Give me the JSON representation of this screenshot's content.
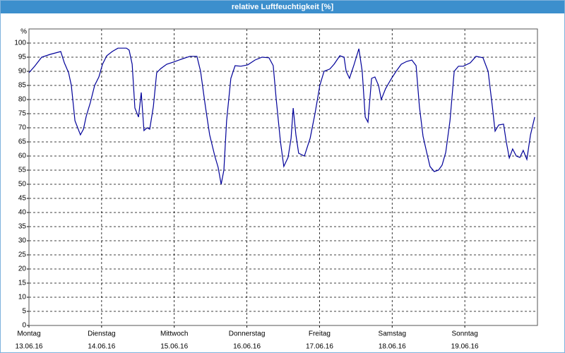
{
  "chart_data": {
    "type": "line",
    "title": "relative Luftfeuchtigkeit [%]",
    "ylabel": "%",
    "xlim": [
      0,
      168
    ],
    "xticks": [
      {
        "value": 0,
        "label": "Montag"
      },
      {
        "value": 24,
        "label": "Dienstag"
      },
      {
        "value": 48,
        "label": "Mittwoch"
      },
      {
        "value": 72,
        "label": "Donnerstag"
      },
      {
        "value": 96,
        "label": "Freitag"
      },
      {
        "value": 120,
        "label": "Samstag"
      },
      {
        "value": 144,
        "label": "Sonntag"
      }
    ],
    "xtick_dates": [
      "13.06.16",
      "14.06.16",
      "15.06.16",
      "16.06.16",
      "17.06.16",
      "18.06.16",
      "19.06.16"
    ],
    "ylim": [
      0,
      105
    ],
    "yticks": [
      0,
      5,
      10,
      15,
      20,
      25,
      30,
      35,
      40,
      45,
      50,
      55,
      60,
      65,
      70,
      75,
      80,
      85,
      90,
      95,
      100
    ],
    "grid": true,
    "x": [
      0,
      1.9,
      4.2,
      7.0,
      10.5,
      11.7,
      13.1,
      14.0,
      15.2,
      17.0,
      18.0,
      18.9,
      20.3,
      21.7,
      23.1,
      24.3,
      25.7,
      27.5,
      29.4,
      32.2,
      33.1,
      34.1,
      35.0,
      36.2,
      37.1,
      38.0,
      39.0,
      39.9,
      41.1,
      42.2,
      43.6,
      45.5,
      47.8,
      50.9,
      53.2,
      55.5,
      56.7,
      58.3,
      59.7,
      61.4,
      62.5,
      63.5,
      64.4,
      65.3,
      66.7,
      68.1,
      70.0,
      72.3,
      74.7,
      77.0,
      79.3,
      80.7,
      81.7,
      83.1,
      84.2,
      85.6,
      86.6,
      87.3,
      88.2,
      89.1,
      91.0,
      92.9,
      94.5,
      96.1,
      97.5,
      99.4,
      100.8,
      102.7,
      104.1,
      104.8,
      105.9,
      107.3,
      109.0,
      110.1,
      111.1,
      112.0,
      113.2,
      114.3,
      115.5,
      116.4,
      117.8,
      119.5,
      121.3,
      123.0,
      124.8,
      126.5,
      127.9,
      129.0,
      130.2,
      131.4,
      132.5,
      133.9,
      135.3,
      136.5,
      137.7,
      139.1,
      140.5,
      141.9,
      143.5,
      145.8,
      147.7,
      150.0,
      151.7,
      153.1,
      154.0,
      155.2,
      156.8,
      157.7,
      158.7,
      159.8,
      161.0,
      162.2,
      163.3,
      164.5,
      165.7,
      167.1
    ],
    "series": [
      {
        "color": "#000099",
        "values": [
          89.5,
          91.8,
          95,
          96,
          97,
          93,
          89.5,
          85,
          72.5,
          67.5,
          69.5,
          74,
          79,
          85,
          88,
          92.5,
          95.5,
          97,
          98.2,
          98.2,
          97.5,
          92.5,
          77,
          73.8,
          82.5,
          69,
          70,
          69.5,
          77.5,
          89.5,
          91,
          92.5,
          93.3,
          94.5,
          95.3,
          95.3,
          90,
          77.5,
          67.5,
          60,
          56,
          50,
          55,
          72.5,
          87.5,
          92,
          91.8,
          92.3,
          94,
          95,
          94.8,
          92,
          80,
          65,
          56.3,
          59.5,
          66.3,
          77,
          67.5,
          61,
          60,
          66.3,
          75,
          85,
          90,
          90.8,
          92.5,
          95.5,
          95,
          90,
          87.5,
          92,
          98,
          90,
          73.8,
          72,
          87.5,
          88,
          85,
          80,
          83.8,
          87,
          90,
          92.5,
          93.5,
          94,
          92,
          77.5,
          67,
          61.3,
          56.3,
          54.5,
          55,
          56.8,
          61.3,
          72.5,
          90,
          91.8,
          91.8,
          93,
          95.3,
          94.8,
          90,
          77.5,
          68.8,
          71,
          71.3,
          65,
          59.3,
          62.5,
          60,
          59.5,
          62,
          58.8,
          67.5,
          73.8
        ]
      }
    ]
  }
}
